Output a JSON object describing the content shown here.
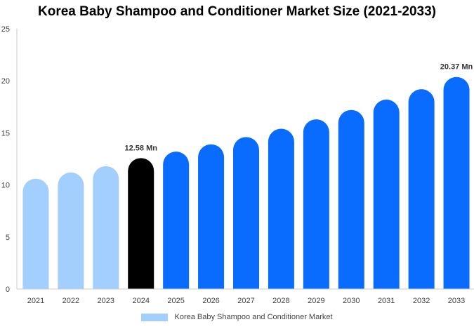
{
  "chart_data": {
    "type": "bar",
    "title": "Korea Baby Shampoo and Conditioner Market Size (2021-2033)",
    "categories": [
      "2021",
      "2022",
      "2023",
      "2024",
      "2025",
      "2026",
      "2027",
      "2028",
      "2029",
      "2030",
      "2031",
      "2032",
      "2033"
    ],
    "series": [
      {
        "name": "Korea Baby Shampoo and Conditioner Market",
        "values": [
          10.6,
          11.2,
          11.8,
          12.58,
          13.2,
          13.9,
          14.6,
          15.4,
          16.3,
          17.2,
          18.2,
          19.2,
          20.37
        ]
      }
    ],
    "data_labels": [
      {
        "category": "2024",
        "text": "12.58 Mn"
      },
      {
        "category": "2033",
        "text": "20.37 Mn"
      }
    ],
    "ylim": [
      0,
      25
    ],
    "yticks": [
      0,
      5,
      10,
      15,
      20,
      25
    ],
    "grid": false,
    "legend_position": "bottom",
    "colors": {
      "history": "#a3cfff",
      "base_year": "#000000",
      "forecast": "#0a6cff",
      "axis": "#cccccc"
    },
    "color_groups": [
      "history",
      "history",
      "history",
      "base_year",
      "forecast",
      "forecast",
      "forecast",
      "forecast",
      "forecast",
      "forecast",
      "forecast",
      "forecast",
      "forecast"
    ]
  }
}
